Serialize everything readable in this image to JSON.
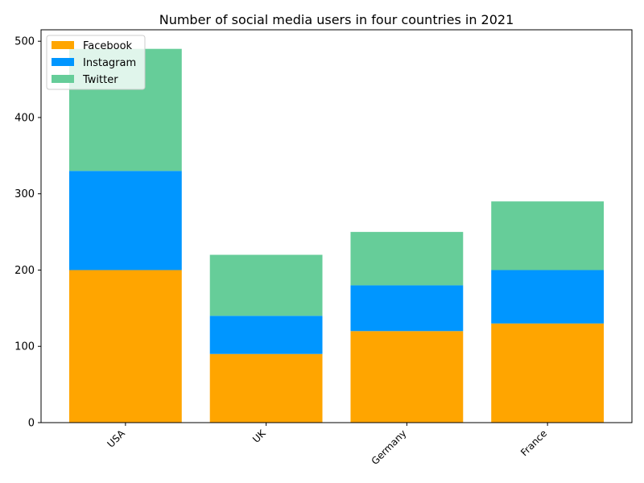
{
  "chart_data": {
    "type": "bar",
    "stacked": true,
    "title": "Number of social media users in four countries in 2021",
    "xlabel": "",
    "ylabel": "",
    "categories": [
      "USA",
      "UK",
      "Germany",
      "France"
    ],
    "series": [
      {
        "name": "Facebook",
        "values": [
          200,
          90,
          120,
          130
        ],
        "color": "#ffa500"
      },
      {
        "name": "Instagram",
        "values": [
          130,
          50,
          60,
          70
        ],
        "color": "#0096ff"
      },
      {
        "name": "Twitter",
        "values": [
          160,
          80,
          70,
          90
        ],
        "color": "#66cd99"
      }
    ],
    "ylim": [
      0,
      515
    ],
    "yticks": [
      0,
      100,
      200,
      300,
      400,
      500
    ],
    "grid": false,
    "legend_position": "top-left"
  }
}
